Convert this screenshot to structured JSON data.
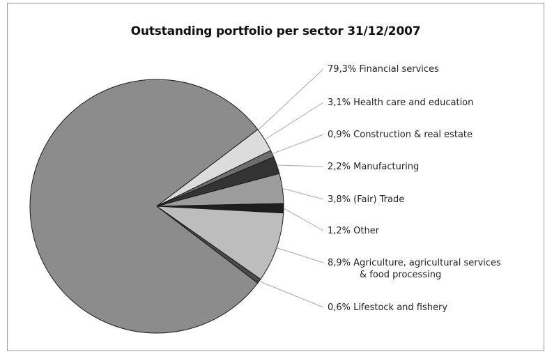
{
  "chart_data": {
    "type": "pie",
    "title": "Outstanding portfolio per sector 31/12/2007",
    "slices": [
      {
        "label": "79,3% Financial services",
        "label_lines": [
          "79,3% Financial services"
        ],
        "value": 79.3,
        "color": "#8c8c8c"
      },
      {
        "label": "3,1% Health care and education",
        "label_lines": [
          "3,1% Health care and education"
        ],
        "value": 3.1,
        "color": "#dcdcdc"
      },
      {
        "label": "0,9% Construction & real estate",
        "label_lines": [
          "0,9% Construction & real estate"
        ],
        "value": 0.9,
        "color": "#6e6e6e"
      },
      {
        "label": "2,2% Manufacturing",
        "label_lines": [
          "2,2% Manufacturing"
        ],
        "value": 2.2,
        "color": "#333333"
      },
      {
        "label": "3,8% (Fair) Trade",
        "label_lines": [
          "3,8% (Fair) Trade"
        ],
        "value": 3.8,
        "color": "#9c9c9c"
      },
      {
        "label": "1,2% Other",
        "label_lines": [
          "1,2% Other"
        ],
        "value": 1.2,
        "color": "#1e1e1e"
      },
      {
        "label": "8,9% Agriculture, agricultural services & food processing",
        "label_lines": [
          "8,9% Agriculture, agricultural services",
          "& food processing"
        ],
        "value": 8.9,
        "color": "#bdbdbd"
      },
      {
        "label": "0,6% Lifestock and fishery",
        "label_lines": [
          "0,6% Lifestock and fishery"
        ],
        "value": 0.6,
        "color": "#4a4a4a"
      }
    ]
  }
}
